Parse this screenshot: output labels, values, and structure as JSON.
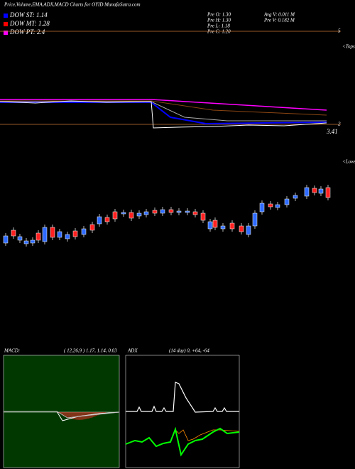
{
  "header": {
    "title": "Price,Volume,EMA,ADX,MACD Charts for OYID MunafaSutra.com"
  },
  "legend": [
    {
      "label": "DOW ST: 1.14",
      "color": "#0000ff"
    },
    {
      "label": "DOW MT: 1.28",
      "color": "#ff0000"
    },
    {
      "label": "DOW PT: 2.4",
      "color": "#ff00ff"
    }
  ],
  "stats": {
    "pre_o": "Pre  O: 1.30",
    "pre_h": "Pre  H: 1.30",
    "pre_l": "Pre  L: 1.18",
    "pre_c": "Pre  C: 1.20",
    "avg_v": "Avg  V: 0.011  M",
    "pre_v": "Pre  V: 0.182  M"
  },
  "axis": {
    "top": "5",
    "mid": "2",
    "price": "3.41",
    "tops": "<Tops",
    "lows": "<Lows"
  },
  "macd": {
    "label": "MACD:",
    "params": "( 12,26,9 ) 1.17, 1.14, 0.03"
  },
  "adx": {
    "label": "ADX",
    "params": "(14  day) 0,  +64,  -64"
  }
}
